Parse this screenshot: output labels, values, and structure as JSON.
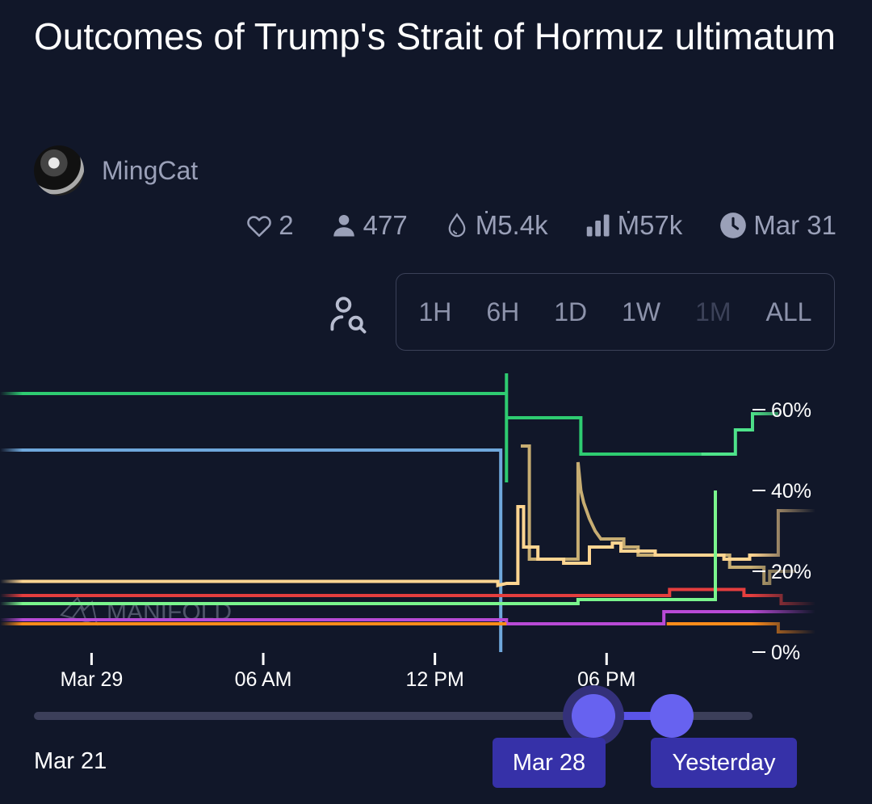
{
  "title": "Outcomes of Trump's Strait of Hormuz ultimatum",
  "author": {
    "name": "MingCat",
    "avatar_icon": "avatar-photo"
  },
  "stats": {
    "likes": "2",
    "traders": "477",
    "liquidity": "Ṁ5.4k",
    "volume": "Ṁ57k",
    "close_date": "Mar 31",
    "icons": [
      "heart-icon",
      "user-icon",
      "droplet-icon",
      "bar-chart-icon",
      "clock-icon"
    ]
  },
  "range_buttons": [
    "1H",
    "6H",
    "1D",
    "1W",
    "1M",
    "ALL"
  ],
  "range_disabled": "1M",
  "watermark": "MANIFOLD",
  "slider": {
    "start_label": "Mar 21",
    "from_label": "Mar 28",
    "to_label": "Yesterday"
  },
  "colors": {
    "background": "#111729",
    "accent": "#6762f0"
  },
  "chart_data": {
    "type": "line",
    "step": true,
    "x_ticks": [
      {
        "label": "Mar 29",
        "t": 0
      },
      {
        "label": "06 AM",
        "t": 6
      },
      {
        "label": "12 PM",
        "t": 12
      },
      {
        "label": "06 PM",
        "t": 18
      }
    ],
    "xlim": [
      -3.2,
      25.3
    ],
    "y_ticks": [
      "60%",
      "40%",
      "20%",
      "0%"
    ],
    "y_tick_values": [
      60,
      40,
      20,
      0
    ],
    "ylim": [
      0,
      60
    ],
    "series": [
      {
        "color": "#2ecc71",
        "points": [
          [
            -3.2,
            64
          ],
          [
            14.5,
            64
          ],
          [
            14.5,
            69
          ],
          [
            14.5,
            42
          ],
          [
            14.5,
            58
          ],
          [
            17.1,
            58
          ],
          [
            17.1,
            49
          ],
          [
            21.3,
            49
          ]
        ]
      },
      {
        "color": "#4ee38a",
        "points": [
          [
            21.3,
            49
          ],
          [
            22.5,
            49
          ],
          [
            22.5,
            55
          ],
          [
            23.1,
            55
          ],
          [
            23.1,
            59
          ],
          [
            24,
            59
          ]
        ]
      },
      {
        "color": "#6fa8dc",
        "points": [
          [
            -3.2,
            50
          ],
          [
            14.3,
            50
          ],
          [
            14.3,
            0
          ]
        ]
      },
      {
        "color": "#c7ad72",
        "points": [
          [
            15,
            51
          ],
          [
            15.3,
            51
          ],
          [
            15.3,
            23
          ],
          [
            17,
            23
          ],
          [
            17,
            47
          ],
          [
            17.1,
            40
          ],
          [
            17.2,
            37
          ],
          [
            17.4,
            33
          ],
          [
            17.6,
            30
          ],
          [
            17.8,
            28
          ],
          [
            18.6,
            28
          ],
          [
            18.6,
            26
          ],
          [
            19.1,
            26
          ],
          [
            19.1,
            24
          ],
          [
            22.3,
            24
          ],
          [
            22.3,
            21
          ],
          [
            23.5,
            21
          ],
          [
            23.5,
            17
          ],
          [
            23.7,
            17
          ],
          [
            23.7,
            20
          ],
          [
            24.6,
            20
          ]
        ]
      },
      {
        "color": "#ffd591",
        "points": [
          [
            -3.2,
            17.5
          ],
          [
            14.2,
            17.5
          ],
          [
            14.2,
            16.5
          ],
          [
            14.5,
            17
          ],
          [
            14.9,
            17
          ],
          [
            14.9,
            36
          ],
          [
            15.1,
            36
          ],
          [
            15.1,
            26
          ],
          [
            15.6,
            26
          ],
          [
            15.6,
            23
          ],
          [
            16.5,
            23
          ],
          [
            16.5,
            22
          ],
          [
            17.4,
            22
          ],
          [
            17.4,
            26
          ],
          [
            18.2,
            26
          ],
          [
            18.2,
            27
          ],
          [
            18.5,
            27
          ],
          [
            18.5,
            25
          ],
          [
            19.7,
            25
          ],
          [
            19.7,
            24
          ],
          [
            22.1,
            24
          ],
          [
            22.1,
            23
          ],
          [
            23,
            23
          ],
          [
            23,
            24
          ],
          [
            24,
            24
          ],
          [
            24,
            35
          ],
          [
            25.3,
            35
          ]
        ]
      },
      {
        "color": "#e53e3e",
        "points": [
          [
            -3.2,
            14
          ],
          [
            20.2,
            14
          ],
          [
            20.2,
            15.5
          ],
          [
            22.8,
            15.5
          ],
          [
            22.8,
            14
          ],
          [
            24.1,
            14
          ],
          [
            24.1,
            12
          ],
          [
            25.3,
            12
          ]
        ]
      },
      {
        "color": "#7af58d",
        "points": [
          [
            -3.2,
            12
          ],
          [
            17,
            12
          ],
          [
            17,
            13
          ],
          [
            21.8,
            13
          ],
          [
            21.8,
            40
          ]
        ]
      },
      {
        "color": "#b84ad6",
        "points": [
          [
            -3.2,
            8
          ],
          [
            14.5,
            8
          ],
          [
            14.5,
            7
          ],
          [
            20,
            7
          ],
          [
            20,
            10
          ],
          [
            25.3,
            10
          ]
        ]
      },
      {
        "color": "#ff8c1a",
        "points": [
          [
            -3.2,
            7
          ],
          [
            14.5,
            7
          ]
        ]
      },
      {
        "color": "#ff8c1a",
        "points": [
          [
            20.1,
            7
          ],
          [
            24,
            7
          ],
          [
            24,
            5
          ],
          [
            25.3,
            5
          ]
        ]
      }
    ]
  }
}
